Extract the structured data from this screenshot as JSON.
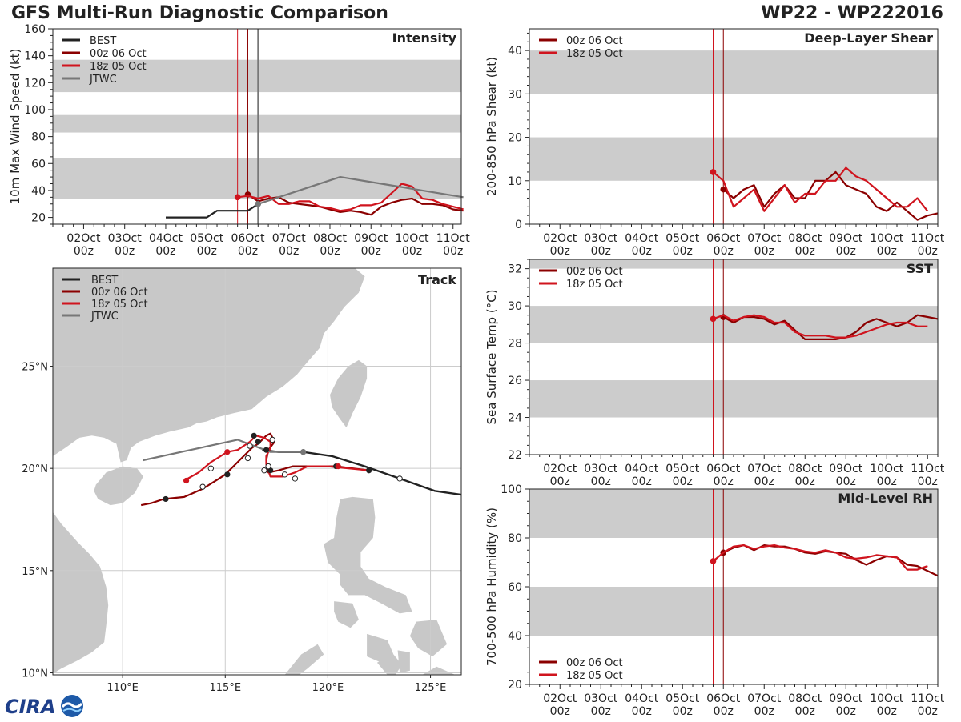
{
  "header": {
    "title_left": "GFS Multi-Run Diagnostic Comparison",
    "title_right": "WP22 - WP222016"
  },
  "logo": {
    "text": "CIRA"
  },
  "colors": {
    "best": "#222222",
    "run_00z": "#8b0000",
    "run_18z": "#d0141e",
    "jtwc": "#777777",
    "band": "#cccccc",
    "land": "#c8c8c8",
    "grid": "#cccccc"
  },
  "legend_labels": [
    "BEST",
    "00z 06 Oct",
    "18z 05 Oct",
    "JTWC"
  ],
  "time_ticks": {
    "values": [
      1,
      2,
      3,
      4,
      5,
      6,
      7,
      8,
      9,
      10
    ],
    "labels": [
      "02Oct\n00z",
      "03Oct\n00z",
      "04Oct\n00z",
      "05Oct\n00z",
      "06Oct\n00z",
      "07Oct\n00z",
      "08Oct\n00z",
      "09Oct\n00z",
      "10Oct\n00z",
      "11Oct\n00z"
    ]
  },
  "init_lines": {
    "run_18z": 4.75,
    "run_00z": 5.0,
    "jtwc": 5.25
  },
  "chart_data": [
    {
      "id": "intensity",
      "type": "line",
      "title": "Intensity",
      "ylabel": "10m Max Wind Speed (kt)",
      "xlim": [
        0.25,
        10.2
      ],
      "ylim": [
        15,
        160
      ],
      "yticks": [
        20,
        40,
        60,
        80,
        100,
        120,
        140,
        160
      ],
      "minor_step": 5,
      "bands": [
        [
          34,
          64
        ],
        [
          83,
          96
        ],
        [
          113,
          137
        ]
      ],
      "legend": "top-left",
      "series": [
        {
          "name": "BEST",
          "role": "best",
          "marker_first": false,
          "x": [
            3.0,
            3.25,
            3.5,
            3.75,
            4.0,
            4.25,
            4.5,
            4.75,
            5.0,
            5.25
          ],
          "y": [
            20,
            20,
            20,
            20,
            20,
            25,
            25,
            25,
            25,
            30
          ]
        },
        {
          "name": "00z 06 Oct",
          "role": "run_00z",
          "marker_first": true,
          "x": [
            5.0,
            5.25,
            5.5,
            5.75,
            6.0,
            6.25,
            6.5,
            6.75,
            7.0,
            7.25,
            7.5,
            7.75,
            8.0,
            8.25,
            8.5,
            8.75,
            9.0,
            9.25,
            9.5,
            9.75,
            10.0,
            10.25
          ],
          "y": [
            37,
            32,
            34,
            35,
            31,
            30,
            29,
            28,
            26,
            24,
            25,
            24,
            22,
            28,
            31,
            33,
            34,
            30,
            30,
            29,
            26,
            25
          ]
        },
        {
          "name": "18z 05 Oct",
          "role": "run_18z",
          "marker_first": true,
          "x": [
            4.75,
            5.0,
            5.25,
            5.5,
            5.75,
            6.0,
            6.25,
            6.5,
            6.75,
            7.0,
            7.25,
            7.5,
            7.75,
            8.0,
            8.25,
            8.5,
            8.75,
            9.0,
            9.25,
            9.5,
            9.75,
            10.0,
            10.25
          ],
          "y": [
            35,
            36,
            34,
            36,
            30,
            30,
            32,
            32,
            28,
            27,
            25,
            26,
            29,
            29,
            31,
            38,
            45,
            43,
            34,
            33,
            30,
            28,
            26
          ]
        },
        {
          "name": "JTWC",
          "role": "jtwc",
          "marker_first": true,
          "x": [
            5.25,
            6.25,
            7.25,
            8.25,
            9.25,
            10.25
          ],
          "y": [
            30,
            40,
            50,
            45,
            40,
            35
          ]
        }
      ]
    },
    {
      "id": "shear",
      "type": "line",
      "title": "Deep-Layer Shear",
      "ylabel": "200-850 hPa Shear (kt)",
      "xlim": [
        0.25,
        10.25
      ],
      "ylim": [
        0,
        45
      ],
      "yticks": [
        0,
        10,
        20,
        30,
        40
      ],
      "minor_step": 2,
      "bands": [
        [
          10,
          20
        ],
        [
          30,
          40
        ]
      ],
      "legend": "top-left",
      "series": [
        {
          "name": "00z 06 Oct",
          "role": "run_00z",
          "marker_first": true,
          "x": [
            5.0,
            5.25,
            5.5,
            5.75,
            6.0,
            6.25,
            6.5,
            6.75,
            7.0,
            7.25,
            7.5,
            7.75,
            8.0,
            8.25,
            8.5,
            8.75,
            9.0,
            9.25,
            9.5,
            9.75,
            10.0,
            10.25
          ],
          "y": [
            8,
            6,
            8,
            9,
            4,
            7,
            9,
            6,
            6,
            10,
            10,
            12,
            9,
            8,
            7,
            4,
            3,
            5,
            3,
            1,
            2,
            2.5
          ]
        },
        {
          "name": "18z 05 Oct",
          "role": "run_18z",
          "marker_first": true,
          "x": [
            4.75,
            5.0,
            5.25,
            5.5,
            5.75,
            6.0,
            6.25,
            6.5,
            6.75,
            7.0,
            7.25,
            7.5,
            7.75,
            8.0,
            8.25,
            8.5,
            8.75,
            9.0,
            9.25,
            9.5,
            9.75,
            10.0
          ],
          "y": [
            12,
            10,
            4,
            6,
            8,
            3,
            6,
            9,
            5,
            7,
            7,
            10,
            10,
            13,
            11,
            10,
            8,
            6,
            4,
            4,
            6,
            3
          ]
        }
      ]
    },
    {
      "id": "sst",
      "type": "line",
      "title": "SST",
      "ylabel": "Sea Surface Temp (°C)",
      "xlim": [
        0.25,
        10.25
      ],
      "ylim": [
        22,
        32.5
      ],
      "yticks": [
        22,
        24,
        26,
        28,
        30,
        32
      ],
      "minor_step": 0.5,
      "bands": [
        [
          24,
          26
        ],
        [
          28,
          30
        ],
        [
          32,
          32.5
        ]
      ],
      "legend": "top-left",
      "series": [
        {
          "name": "00z 06 Oct",
          "role": "run_00z",
          "marker_first": true,
          "x": [
            5.0,
            5.25,
            5.5,
            5.75,
            6.0,
            6.25,
            6.5,
            6.75,
            7.0,
            7.25,
            7.5,
            7.75,
            8.0,
            8.25,
            8.5,
            8.75,
            9.0,
            9.25,
            9.5,
            9.75,
            10.0,
            10.25
          ],
          "y": [
            29.4,
            29.1,
            29.4,
            29.4,
            29.3,
            29.0,
            29.2,
            28.7,
            28.2,
            28.2,
            28.2,
            28.2,
            28.3,
            28.6,
            29.1,
            29.3,
            29.1,
            28.9,
            29.1,
            29.5,
            29.4,
            29.3
          ]
        },
        {
          "name": "18z 05 Oct",
          "role": "run_18z",
          "marker_first": true,
          "x": [
            4.75,
            5.0,
            5.25,
            5.5,
            5.75,
            6.0,
            6.25,
            6.5,
            6.75,
            7.0,
            7.25,
            7.5,
            7.75,
            8.0,
            8.25,
            8.5,
            8.75,
            9.0,
            9.25,
            9.5,
            9.75,
            10.0
          ],
          "y": [
            29.3,
            29.5,
            29.2,
            29.4,
            29.5,
            29.4,
            29.1,
            29.1,
            28.6,
            28.4,
            28.4,
            28.4,
            28.3,
            28.3,
            28.4,
            28.6,
            28.8,
            29.0,
            29.1,
            29.1,
            28.9,
            28.9
          ]
        }
      ]
    },
    {
      "id": "rh",
      "type": "line",
      "title": "Mid-Level RH",
      "ylabel": "700-500 hPa Humidity (%)",
      "xlim": [
        0.25,
        10.25
      ],
      "ylim": [
        20,
        100
      ],
      "yticks": [
        20,
        40,
        60,
        80,
        100
      ],
      "minor_step": 5,
      "bands": [
        [
          40,
          60
        ],
        [
          80,
          100
        ]
      ],
      "legend": "bottom-left",
      "series": [
        {
          "name": "00z 06 Oct",
          "role": "run_00z",
          "marker_first": true,
          "x": [
            5.0,
            5.25,
            5.5,
            5.75,
            6.0,
            6.25,
            6.5,
            6.75,
            7.0,
            7.25,
            7.5,
            7.75,
            8.0,
            8.25,
            8.5,
            8.75,
            9.0,
            9.25,
            9.5,
            9.75,
            10.0,
            10.25
          ],
          "y": [
            74,
            76,
            77,
            75,
            77,
            76.5,
            76.5,
            75.5,
            74,
            73.5,
            74.5,
            74,
            73.5,
            71,
            69,
            71,
            72.5,
            72,
            69,
            68.5,
            66.5,
            64.5
          ]
        },
        {
          "name": "18z 05 Oct",
          "role": "run_18z",
          "marker_first": true,
          "x": [
            4.75,
            5.0,
            5.25,
            5.5,
            5.75,
            6.0,
            6.25,
            6.5,
            6.75,
            7.0,
            7.25,
            7.5,
            7.75,
            8.0,
            8.25,
            8.5,
            8.75,
            9.0,
            9.25,
            9.5,
            9.75,
            10.0
          ],
          "y": [
            70.5,
            74,
            76.5,
            77,
            75.5,
            76.5,
            77,
            76,
            75.5,
            74.5,
            74,
            75,
            74,
            72,
            71.5,
            72,
            73,
            72.5,
            72,
            67,
            67,
            68.5
          ]
        }
      ]
    },
    {
      "id": "track",
      "type": "scatter",
      "title": "Track",
      "xlim": [
        106.6,
        126.5
      ],
      "ylim": [
        9.9,
        29.8
      ],
      "xticks": [
        110,
        115,
        120,
        125
      ],
      "xtick_labels": [
        "110°E",
        "115°E",
        "120°E",
        "125°E"
      ],
      "yticks": [
        10,
        15,
        20,
        25
      ],
      "ytick_labels": [
        "10°N",
        "15°N",
        "20°N",
        "25°N"
      ],
      "legend": "top-left",
      "tracks": [
        {
          "name": "BEST",
          "role": "best",
          "lon": [
            126.6,
            125.2,
            123.5,
            121.8,
            120.2,
            118.8,
            117.6,
            116.8
          ],
          "lat": [
            18.7,
            18.9,
            19.5,
            20.1,
            20.6,
            20.8,
            20.8,
            20.9
          ],
          "filled": [
            118.8
          ],
          "hollow": [
            123.5
          ]
        },
        {
          "name": "00z 06 Oct",
          "role": "run_00z",
          "lon": [
            122.0,
            120.4,
            119.3,
            118.3,
            117.6,
            117.1,
            117.0,
            117.1,
            117.4,
            117.2,
            117.0,
            116.6,
            116.3,
            115.4,
            115.0,
            114.7,
            113.9,
            113.0,
            112.0,
            111.4,
            110.9
          ],
          "lat": [
            19.9,
            20.1,
            20.1,
            20.1,
            19.9,
            19.8,
            20.4,
            20.9,
            21.3,
            21.7,
            21.6,
            21.2,
            21.0,
            20.1,
            19.7,
            19.5,
            19.0,
            18.6,
            18.5,
            18.3,
            18.2
          ],
          "filled": [
            [
              122.0,
              19.9
            ],
            [
              120.4,
              20.1
            ],
            [
              117.2,
              19.9
            ],
            [
              117.0,
              20.9
            ],
            [
              116.6,
              21.3
            ],
            [
              116.4,
              21.6
            ],
            [
              115.1,
              19.7
            ],
            [
              112.1,
              18.5
            ]
          ],
          "hollow": [
            [
              118.4,
              19.5
            ]
          ]
        },
        {
          "name": "18z 05 Oct",
          "role": "run_18z",
          "lon": [
            122.0,
            121.0,
            120.0,
            119.0,
            118.4,
            117.8,
            117.2,
            117.0,
            117.0,
            117.2,
            117.2,
            116.9,
            116.5,
            116.2,
            115.6,
            115.1,
            114.3,
            113.7,
            113.0
          ],
          "lat": [
            19.9,
            20.0,
            20.1,
            20.1,
            19.8,
            19.6,
            19.6,
            20.2,
            20.6,
            21.0,
            21.3,
            21.5,
            21.6,
            21.3,
            20.9,
            20.8,
            20.3,
            19.8,
            19.4
          ],
          "filled": [
            [
              120.5,
              20.1
            ],
            [
              115.1,
              20.8
            ],
            [
              113.1,
              19.4
            ]
          ],
          "hollow": [
            [
              117.1,
              20.1
            ],
            [
              117.3,
              21.4
            ],
            [
              116.1,
              20.5
            ],
            [
              114.3,
              20.0
            ],
            [
              113.9,
              19.1
            ],
            [
              117.9,
              19.7
            ],
            [
              116.9,
              19.9
            ]
          ]
        },
        {
          "name": "JTWC",
          "role": "jtwc",
          "lon": [
            118.8,
            117.2,
            115.6,
            113.3,
            111.0
          ],
          "lat": [
            20.8,
            20.8,
            21.4,
            20.9,
            20.4
          ],
          "filled": [
            [
              118.8,
              20.8
            ]
          ],
          "hollow": [
            [
              116.2,
              21.1
            ]
          ]
        }
      ]
    }
  ]
}
